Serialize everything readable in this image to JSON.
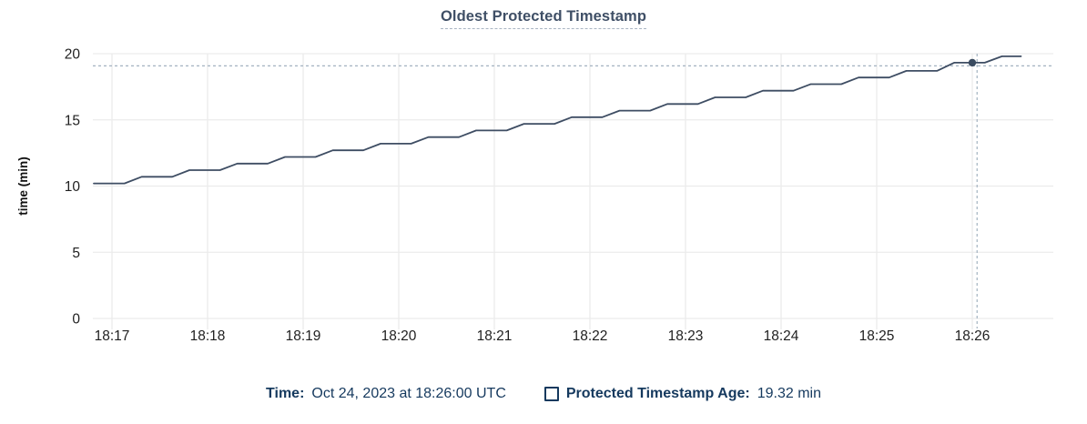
{
  "chart": {
    "title": "Oldest Protected Timestamp"
  },
  "legend": {
    "time_label": "Time:",
    "time_value": "Oct 24, 2023 at 18:26:00 UTC",
    "series_label": "Protected Timestamp Age:",
    "series_value": "19.32 min"
  },
  "chart_data": {
    "type": "line",
    "title": "Oldest Protected Timestamp",
    "xlabel": "",
    "ylabel": "time (min)",
    "x_tick_labels": [
      "18:17",
      "18:18",
      "18:19",
      "18:20",
      "18:21",
      "18:22",
      "18:23",
      "18:24",
      "18:25",
      "18:26"
    ],
    "y_ticks": [
      0,
      5,
      10,
      15,
      20
    ],
    "ylim": [
      0,
      20.7
    ],
    "xlim_minutes_from_first_tick": [
      -0.2,
      9.85
    ],
    "grid": true,
    "legend_position": "bottom-center",
    "series": [
      {
        "name": "Protected Timestamp Age",
        "unit": "min",
        "points": [
          [
            -0.19,
            10.2
          ],
          [
            0.13,
            10.2
          ],
          [
            0.31,
            10.7
          ],
          [
            0.63,
            10.7
          ],
          [
            0.81,
            11.2
          ],
          [
            1.13,
            11.2
          ],
          [
            1.31,
            11.7
          ],
          [
            1.63,
            11.7
          ],
          [
            1.81,
            12.2
          ],
          [
            2.13,
            12.2
          ],
          [
            2.31,
            12.7
          ],
          [
            2.63,
            12.7
          ],
          [
            2.81,
            13.2
          ],
          [
            3.13,
            13.2
          ],
          [
            3.31,
            13.7
          ],
          [
            3.63,
            13.7
          ],
          [
            3.81,
            14.2
          ],
          [
            4.13,
            14.2
          ],
          [
            4.31,
            14.7
          ],
          [
            4.63,
            14.7
          ],
          [
            4.81,
            15.2
          ],
          [
            5.13,
            15.2
          ],
          [
            5.31,
            15.7
          ],
          [
            5.63,
            15.7
          ],
          [
            5.81,
            16.2
          ],
          [
            6.13,
            16.2
          ],
          [
            6.31,
            16.7
          ],
          [
            6.63,
            16.7
          ],
          [
            6.81,
            17.2
          ],
          [
            7.13,
            17.2
          ],
          [
            7.31,
            17.7
          ],
          [
            7.63,
            17.7
          ],
          [
            7.81,
            18.2
          ],
          [
            8.13,
            18.2
          ],
          [
            8.31,
            18.7
          ],
          [
            8.63,
            18.7
          ],
          [
            8.81,
            19.32
          ],
          [
            9.13,
            19.32
          ],
          [
            9.31,
            19.8
          ],
          [
            9.51,
            19.8
          ]
        ]
      }
    ],
    "hover": {
      "point_t": 9.0,
      "point_v": 19.32,
      "crosshair_t": 9.05,
      "crosshair_v": 19.08,
      "time": "Oct 24, 2023 at 18:26:00 UTC",
      "value": "19.32 min"
    },
    "colors": {
      "line": "#3e4d63",
      "dot": "#394a5f",
      "crosshair": "#a3b2c0",
      "grid": "#ececec",
      "tick_text": "#1f1f1f",
      "axis_title_text": "#111111",
      "navy_text": "#15395e",
      "title_text": "#3f4f66",
      "background": "#ffffff"
    }
  }
}
